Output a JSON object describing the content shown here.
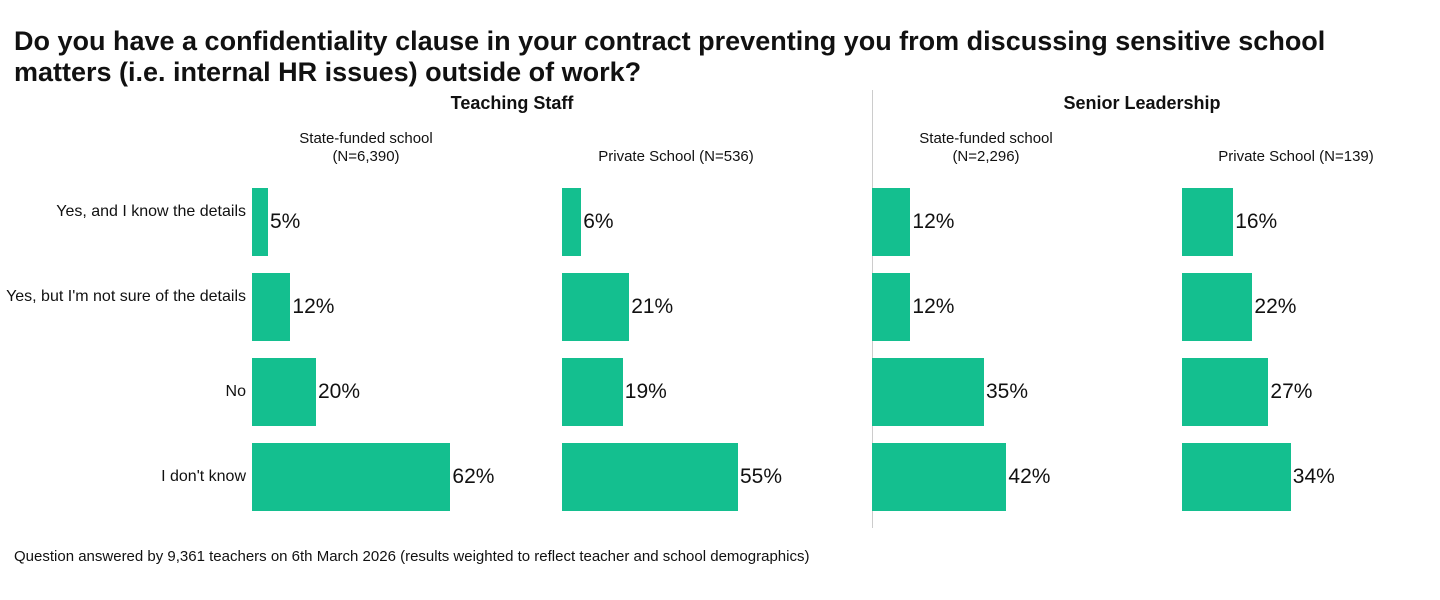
{
  "chart_data": {
    "type": "bar",
    "title": "Do you have a confidentiality clause in your contract preventing you from discussing sensitive school matters (i.e. internal HR issues) outside of work?",
    "categories": [
      "Yes, and I know the details",
      "Yes, but I'm not sure of the details",
      "No",
      "I don't know"
    ],
    "groups": [
      "Teaching Staff",
      "Senior Leadership"
    ],
    "panels": [
      {
        "group": 0,
        "name": "State-funded school",
        "n": "(N=6,390)",
        "values": [
          5,
          12,
          20,
          62
        ]
      },
      {
        "group": 0,
        "name": "Private School (N=536)",
        "n": "",
        "values": [
          6,
          21,
          19,
          55
        ]
      },
      {
        "group": 1,
        "name": "State-funded school",
        "n": "(N=2,296)",
        "values": [
          12,
          12,
          35,
          42
        ]
      },
      {
        "group": 1,
        "name": "Private School (N=139)",
        "n": "",
        "values": [
          16,
          22,
          27,
          34
        ]
      }
    ],
    "unit": "%",
    "color": "#14BF8F",
    "footnote": "Question answered by 9,361 teachers on 6th March 2026 (results weighted to reflect teacher and school demographics)"
  }
}
